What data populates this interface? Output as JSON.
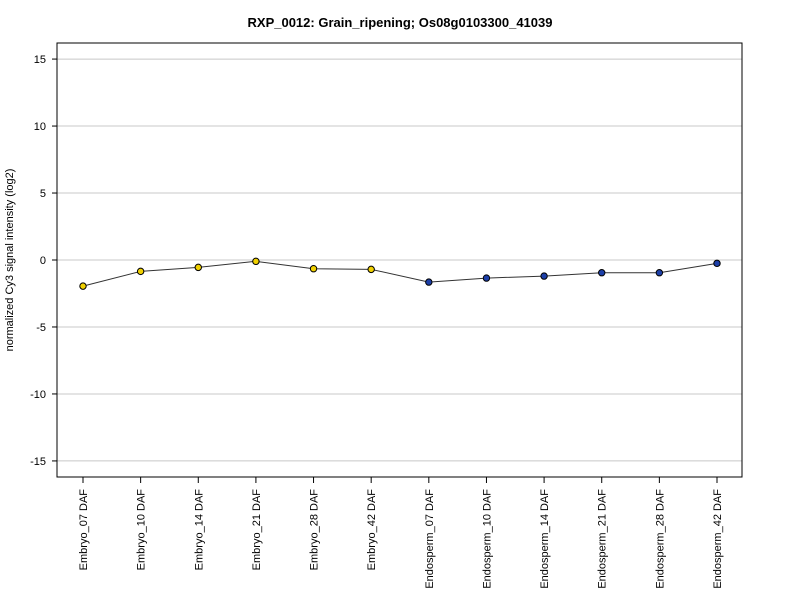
{
  "chart_data": {
    "type": "line",
    "title": "RXP_0012: Grain_ripening; Os08g0103300_41039",
    "xlabel": "",
    "ylabel": "normalized Cy3 signal intensity (log2)",
    "ylim": [
      -16.2,
      16.2
    ],
    "yticks": [
      -15,
      -10,
      -5,
      0,
      5,
      10,
      15
    ],
    "grid": true,
    "categories": [
      "Embryo_07 DAF",
      "Embryo_10 DAF",
      "Embryo_14 DAF",
      "Embryo_21 DAF",
      "Embryo_28 DAF",
      "Embryo_42 DAF",
      "Endosperm_07 DAF",
      "Endosperm_10 DAF",
      "Endosperm_14 DAF",
      "Endosperm_21 DAF",
      "Endosperm_28 DAF",
      "Endosperm_42 DAF"
    ],
    "series": [
      {
        "values": [
          -1.95,
          -0.85,
          -0.55,
          -0.1,
          -0.65,
          -0.7,
          -1.65,
          -1.35,
          -1.2,
          -0.95,
          -0.95,
          -0.25
        ],
        "colors": [
          "#f0d000",
          "#f0d000",
          "#f0d000",
          "#f0d000",
          "#f0d000",
          "#f0d000",
          "#1c3fa8",
          "#1c3fa8",
          "#1c3fa8",
          "#1c3fa8",
          "#1c3fa8",
          "#1c3fa8"
        ]
      }
    ]
  }
}
